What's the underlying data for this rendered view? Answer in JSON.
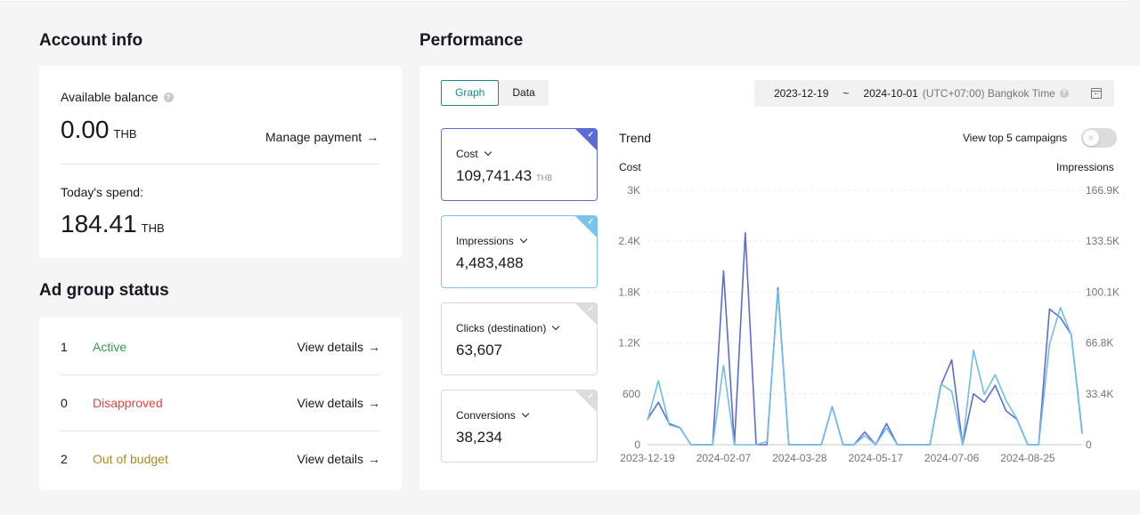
{
  "account": {
    "title": "Account info",
    "balance_label": "Available balance",
    "balance_value": "0.00",
    "balance_currency": "THB",
    "manage_payment": "Manage payment",
    "spend_label": "Today's spend:",
    "spend_value": "184.41",
    "spend_currency": "THB"
  },
  "ad_group": {
    "title": "Ad group status",
    "rows": [
      {
        "count": "1",
        "label": "Active",
        "color": "#2f9a55",
        "link": "View details"
      },
      {
        "count": "0",
        "label": "Disapproved",
        "color": "#e0473d",
        "link": "View details"
      },
      {
        "count": "2",
        "label": "Out of budget",
        "color": "#a88c1d",
        "link": "View details"
      }
    ]
  },
  "performance": {
    "title": "Performance",
    "tabs": [
      {
        "label": "Graph",
        "active": true
      },
      {
        "label": "Data",
        "active": false
      }
    ],
    "date_start": "2023-12-19",
    "date_sep": "~",
    "date_end": "2024-10-01",
    "timezone": "(UTC+07:00) Bangkok Time",
    "metrics": [
      {
        "label": "Cost",
        "value": "109,741.43",
        "currency": "THB",
        "selected": true,
        "color": "#5d6bd6"
      },
      {
        "label": "Impressions",
        "value": "4,483,488",
        "currency": "",
        "selected": true,
        "color": "#7cc3ea"
      },
      {
        "label": "Clicks (destination)",
        "value": "63,607",
        "currency": "",
        "selected": false,
        "color": "#dcdcde"
      },
      {
        "label": "Conversions",
        "value": "38,234",
        "currency": "",
        "selected": false,
        "color": "#dcdcde"
      }
    ],
    "trend_title": "Trend",
    "toggle_label": "View top 5 campaigns",
    "toggle_on": false
  },
  "chart_data": {
    "type": "line",
    "title": "Trend",
    "x": [
      "2023-12-19",
      "2023-12-26",
      "2024-01-02",
      "2024-01-09",
      "2024-01-16",
      "2024-01-23",
      "2024-01-30",
      "2024-02-07",
      "2024-02-14",
      "2024-02-21",
      "2024-02-28",
      "2024-03-06",
      "2024-03-13",
      "2024-03-20",
      "2024-03-28",
      "2024-04-04",
      "2024-04-11",
      "2024-04-18",
      "2024-04-25",
      "2024-05-02",
      "2024-05-09",
      "2024-05-17",
      "2024-05-24",
      "2024-05-31",
      "2024-06-07",
      "2024-06-14",
      "2024-06-21",
      "2024-06-28",
      "2024-07-06",
      "2024-07-13",
      "2024-07-20",
      "2024-07-27",
      "2024-08-03",
      "2024-08-10",
      "2024-08-17",
      "2024-08-25",
      "2024-09-01",
      "2024-09-08",
      "2024-09-15",
      "2024-09-22",
      "2024-10-01"
    ],
    "x_ticks": [
      "2023-12-19",
      "2024-02-07",
      "2024-03-28",
      "2024-05-17",
      "2024-07-06",
      "2024-08-25"
    ],
    "ylabel": "Cost",
    "ylabel_right": "Impressions",
    "ylim": [
      0,
      3000
    ],
    "ylim_right": [
      0,
      166900
    ],
    "y_ticks": [
      "0",
      "600",
      "1.2K",
      "1.8K",
      "2.4K",
      "3K"
    ],
    "y_ticks_right": [
      "0",
      "33.4K",
      "66.8K",
      "100.1K",
      "133.5K",
      "166.9K"
    ],
    "grid": true,
    "series": [
      {
        "name": "Cost",
        "axis": "left",
        "color": "#5d6bd6",
        "values": [
          300,
          500,
          250,
          200,
          0,
          0,
          0,
          2050,
          0,
          2500,
          0,
          0,
          1850,
          0,
          0,
          0,
          0,
          450,
          0,
          0,
          150,
          0,
          250,
          0,
          0,
          0,
          0,
          700,
          1000,
          0,
          600,
          500,
          700,
          400,
          300,
          0,
          0,
          1600,
          1500,
          1300,
          150
        ]
      },
      {
        "name": "Impressions",
        "axis": "right",
        "color": "#6fbfe8",
        "values": [
          16000,
          42000,
          13000,
          11000,
          0,
          0,
          0,
          52000,
          0,
          0,
          0,
          2000,
          101000,
          0,
          0,
          0,
          0,
          25000,
          0,
          0,
          6000,
          0,
          11000,
          0,
          0,
          0,
          0,
          40000,
          35000,
          0,
          62000,
          33000,
          46000,
          29000,
          17000,
          0,
          0,
          66000,
          90000,
          72000,
          7000
        ]
      }
    ]
  }
}
